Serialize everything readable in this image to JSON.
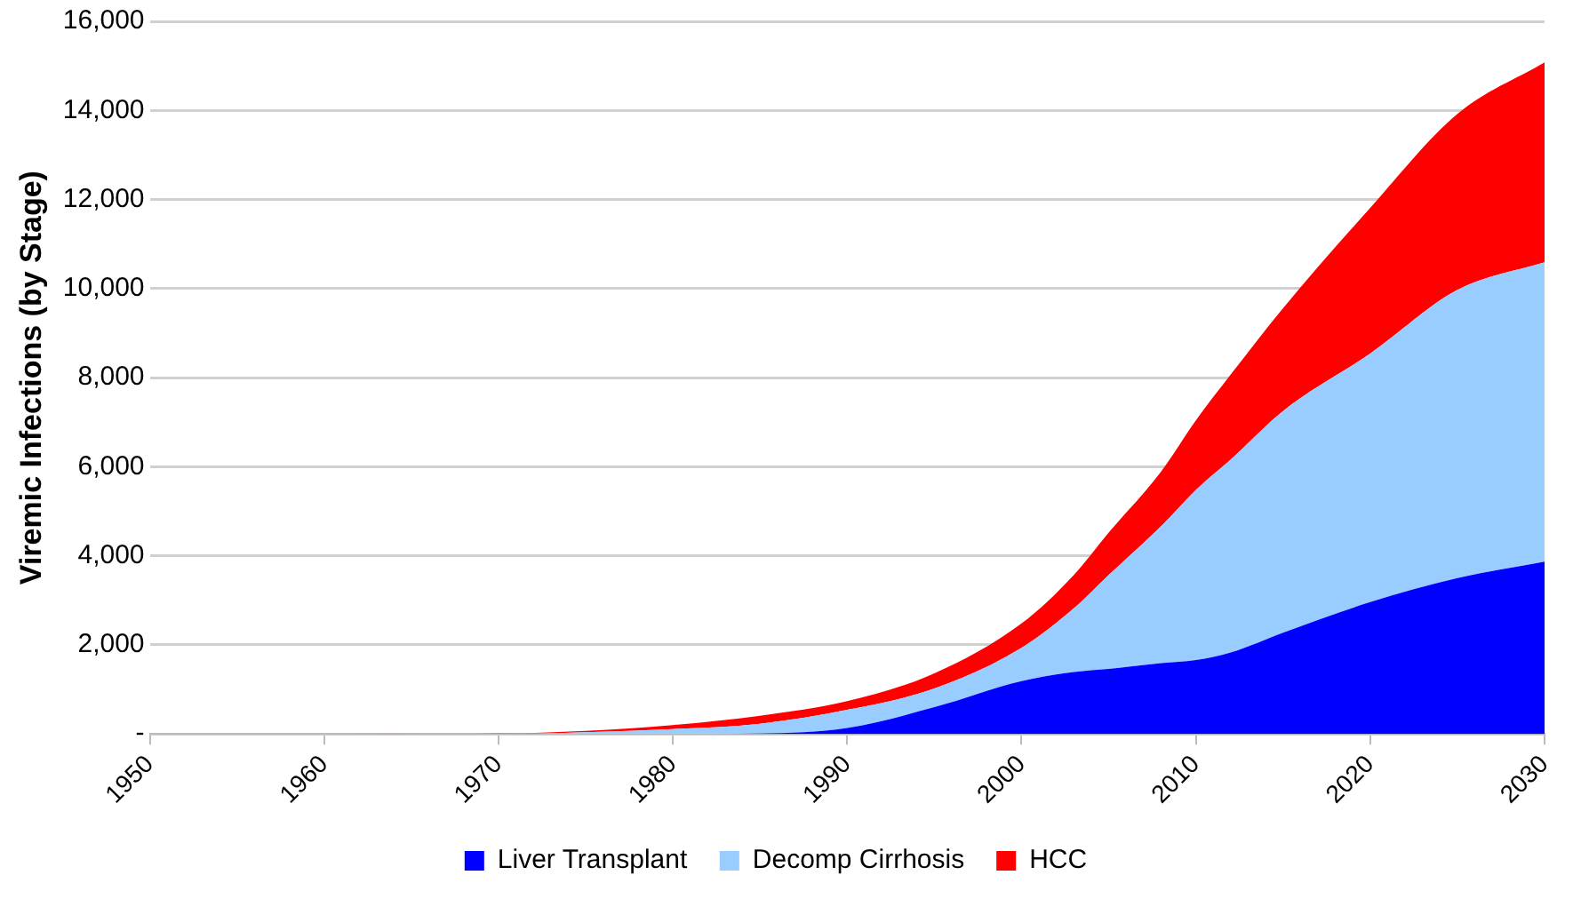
{
  "chart_data": {
    "type": "area",
    "stacked": true,
    "ylabel": "Viremic Infections (by Stage)",
    "x": [
      1950,
      1960,
      1970,
      1975,
      1980,
      1985,
      1990,
      1995,
      2000,
      2003,
      2005,
      2008,
      2010,
      2012,
      2015,
      2020,
      2025,
      2030
    ],
    "series": [
      {
        "name": "Liver Transplant",
        "color": "#0000ff",
        "values": [
          0,
          0,
          0,
          0,
          0,
          10,
          135,
          600,
          1185,
          1390,
          1460,
          1590,
          1660,
          1830,
          2275,
          2960,
          3500,
          3870
        ]
      },
      {
        "name": "Decomp Cirrhosis",
        "color": "#99ccff",
        "values": [
          0,
          0,
          5,
          40,
          110,
          220,
          405,
          420,
          750,
          1430,
          2110,
          3070,
          3820,
          4330,
          4975,
          5580,
          6470,
          6720
        ]
      },
      {
        "name": "HCC",
        "color": "#ff0000",
        "values": [
          0,
          0,
          5,
          30,
          90,
          180,
          195,
          340,
          545,
          750,
          950,
          1230,
          1560,
          1910,
          2310,
          3270,
          3950,
          4490
        ]
      }
    ],
    "xlim": [
      1950,
      2030
    ],
    "xticks": [
      1950,
      1960,
      1970,
      1980,
      1990,
      2000,
      2010,
      2020,
      2030
    ],
    "ylim": [
      0,
      16000
    ],
    "yticks": [
      {
        "value": 0,
        "label": "-"
      },
      {
        "value": 2000,
        "label": "2,000"
      },
      {
        "value": 4000,
        "label": "4,000"
      },
      {
        "value": 6000,
        "label": "6,000"
      },
      {
        "value": 8000,
        "label": "8,000"
      },
      {
        "value": 10000,
        "label": "10,000"
      },
      {
        "value": 12000,
        "label": "12,000"
      },
      {
        "value": 14000,
        "label": "14,000"
      },
      {
        "value": 16000,
        "label": "16,000"
      }
    ],
    "grid": "y",
    "legend": "bottom"
  }
}
